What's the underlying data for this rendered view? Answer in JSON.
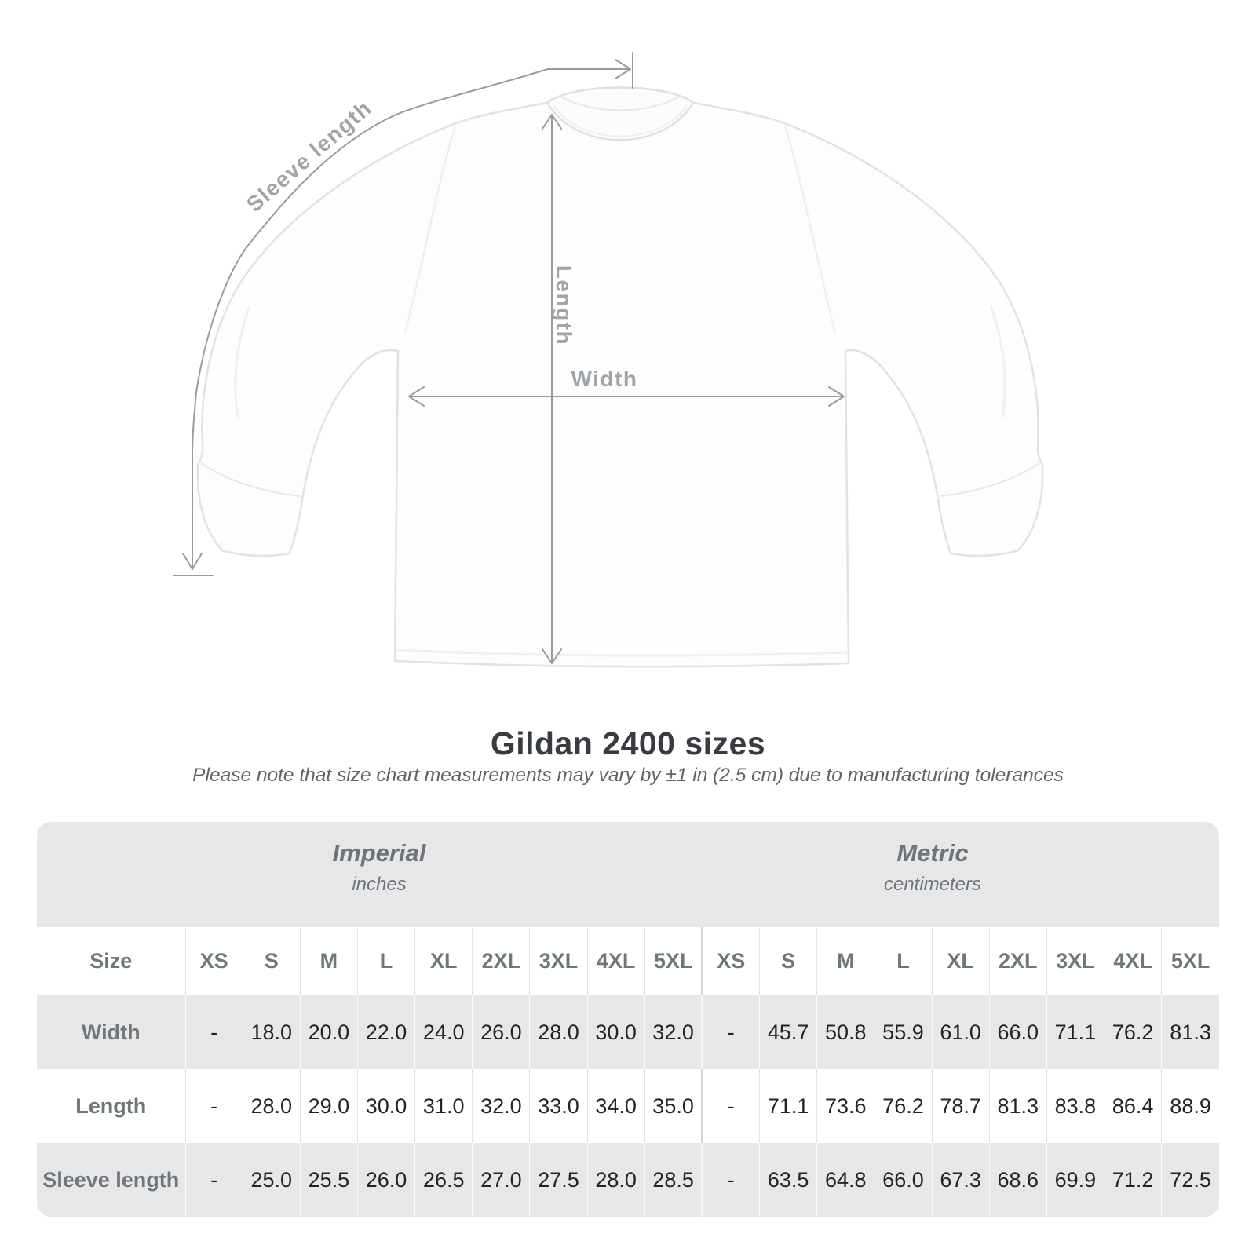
{
  "title": "Gildan 2400 sizes",
  "note": "Please note that size chart measurements may vary by ±1 in (2.5 cm) due to manufacturing tolerances",
  "diagram": {
    "sleeve_length_label": "Sleeve length",
    "length_label": "Length",
    "width_label": "Width"
  },
  "table": {
    "size_header_label": "Size",
    "unit_groups": [
      {
        "name": "Imperial",
        "unit": "inches"
      },
      {
        "name": "Metric",
        "unit": "centimeters"
      }
    ],
    "sizes": [
      "XS",
      "S",
      "M",
      "L",
      "XL",
      "2XL",
      "3XL",
      "4XL",
      "5XL"
    ],
    "rows": [
      {
        "label": "Width",
        "imperial": [
          "-",
          "18.0",
          "20.0",
          "22.0",
          "24.0",
          "26.0",
          "28.0",
          "30.0",
          "32.0"
        ],
        "metric": [
          "-",
          "45.7",
          "50.8",
          "55.9",
          "61.0",
          "66.0",
          "71.1",
          "76.2",
          "81.3"
        ]
      },
      {
        "label": "Length",
        "imperial": [
          "-",
          "28.0",
          "29.0",
          "30.0",
          "31.0",
          "32.0",
          "33.0",
          "34.0",
          "35.0"
        ],
        "metric": [
          "-",
          "71.1",
          "73.6",
          "76.2",
          "78.7",
          "81.3",
          "83.8",
          "86.4",
          "88.9"
        ]
      },
      {
        "label": "Sleeve length",
        "imperial": [
          "-",
          "25.0",
          "25.5",
          "26.0",
          "26.5",
          "27.0",
          "27.5",
          "28.0",
          "28.5"
        ],
        "metric": [
          "-",
          "63.5",
          "64.8",
          "66.0",
          "67.3",
          "68.6",
          "69.9",
          "71.2",
          "72.5"
        ]
      }
    ]
  },
  "colors": {
    "measurement_line": "#9b9b9b",
    "measurement_label": "#a0a4a7",
    "header_text": "#6e7479",
    "value_text": "#222427",
    "card_background": "#e7e7e7",
    "shirt_outline": "#e2e2e2"
  }
}
